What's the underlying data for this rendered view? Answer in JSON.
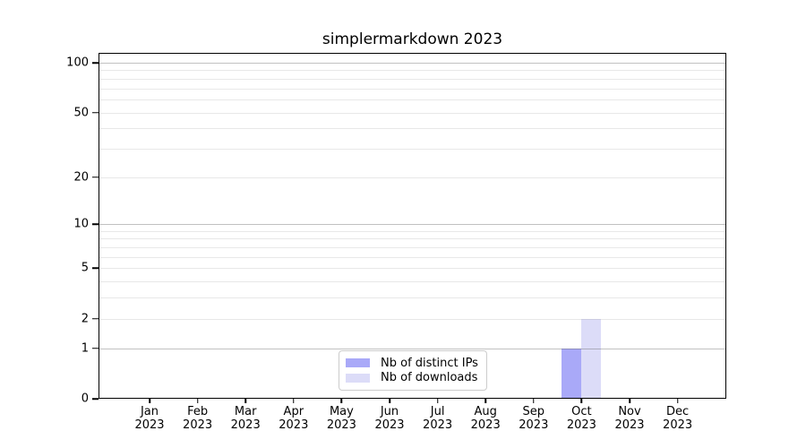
{
  "chart_data": {
    "type": "bar",
    "title": "simplermarkdown 2023",
    "categories": [
      "Jan",
      "Feb",
      "Mar",
      "Apr",
      "May",
      "Jun",
      "Jul",
      "Aug",
      "Sep",
      "Oct",
      "Nov",
      "Dec"
    ],
    "category_year": "2023",
    "series": [
      {
        "name": "Nb of distinct IPs",
        "color": "#a9a9f8",
        "values": [
          0,
          0,
          0,
          0,
          0,
          0,
          0,
          0,
          0,
          1,
          0,
          0
        ]
      },
      {
        "name": "Nb of downloads",
        "color": "#dcdcf8",
        "values": [
          0,
          0,
          0,
          0,
          0,
          0,
          0,
          0,
          0,
          2,
          0,
          0
        ]
      }
    ],
    "yscale": "log1p",
    "ylim": [
      0,
      115
    ],
    "y_ticks": [
      0,
      1,
      2,
      5,
      10,
      20,
      50,
      100
    ],
    "y_major_gridlines": [
      1,
      10,
      100
    ],
    "grid": "horizontal",
    "legend_position": "lower center"
  },
  "colors": {
    "background": "#ffffff",
    "axis": "#000000",
    "grid_major": "#c6c6c6",
    "grid_minor": "#ececec",
    "bar_distinct_ips": "#a9a9f8",
    "bar_downloads": "#dcdcf8",
    "legend_border": "#cccccc"
  }
}
